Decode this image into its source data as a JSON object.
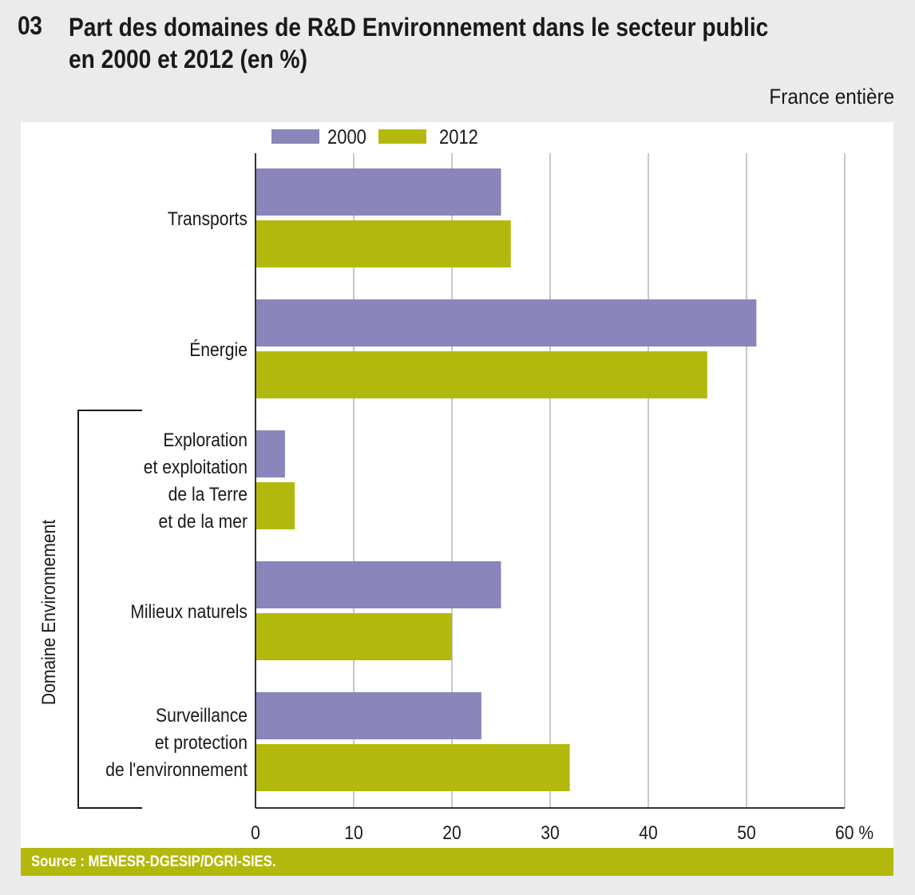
{
  "header": {
    "number": "03",
    "title_line1": "Part des domaines de R&D Environnement dans le secteur public",
    "title_line2": "en 2000 et 2012 (en %)",
    "subtitle": "France entière"
  },
  "source": "Source : MENESR-DGESIP/DGRI-SIES.",
  "colors": {
    "series_2000": "#8a85ba",
    "series_2012": "#b3b90c",
    "grid": "#c8c8c8",
    "axis": "#333333"
  },
  "chart_data": {
    "type": "bar",
    "orientation": "horizontal",
    "title": "Part des domaines de R&D Environnement dans le secteur public en 2000 et 2012 (en %)",
    "categories": [
      [
        "Transports"
      ],
      [
        "Énergie"
      ],
      [
        "Exploration",
        "et exploitation",
        "de la Terre",
        "et de la mer"
      ],
      [
        "Milieux naturels"
      ],
      [
        "Surveillance",
        "et protection",
        "de l'environnement"
      ]
    ],
    "series": [
      {
        "name": "2000",
        "values": [
          25,
          51,
          3,
          25,
          23
        ]
      },
      {
        "name": "2012",
        "values": [
          26,
          46,
          4,
          20,
          32
        ]
      }
    ],
    "xlim": [
      0,
      60
    ],
    "xticks": [
      0,
      10,
      20,
      30,
      40,
      50,
      60
    ],
    "xtick_labels": [
      "0",
      "10",
      "20",
      "30",
      "40",
      "50",
      "60 %"
    ],
    "group_label": "Domaine Environnement",
    "group_label_applies_to": [
      "Exploration et exploitation de la Terre et de la mer",
      "Milieux naturels",
      "Surveillance et protection de l'environnement"
    ],
    "legend": [
      "2000",
      "2012"
    ],
    "legend_position": "top",
    "grid": true
  }
}
